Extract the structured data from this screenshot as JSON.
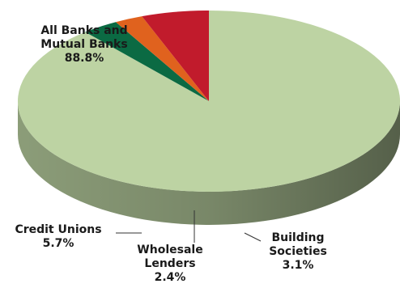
{
  "chart_data": {
    "type": "pie",
    "title": "",
    "style": "3d",
    "slices": [
      {
        "label_lines": [
          "All Banks and",
          "Mutual Banks"
        ],
        "value": 88.8,
        "value_label": "88.8%",
        "color": "#bdd3a3"
      },
      {
        "label_lines": [
          "Building",
          "Societies"
        ],
        "value": 3.1,
        "value_label": "3.1%",
        "color": "#0b6a43"
      },
      {
        "label_lines": [
          "Wholesale",
          "Lenders"
        ],
        "value": 2.4,
        "value_label": "2.4%",
        "color": "#e0621e"
      },
      {
        "label_lines": [
          "Credit Unions"
        ],
        "value": 5.7,
        "value_label": "5.7%",
        "color": "#c11b2c"
      }
    ]
  }
}
